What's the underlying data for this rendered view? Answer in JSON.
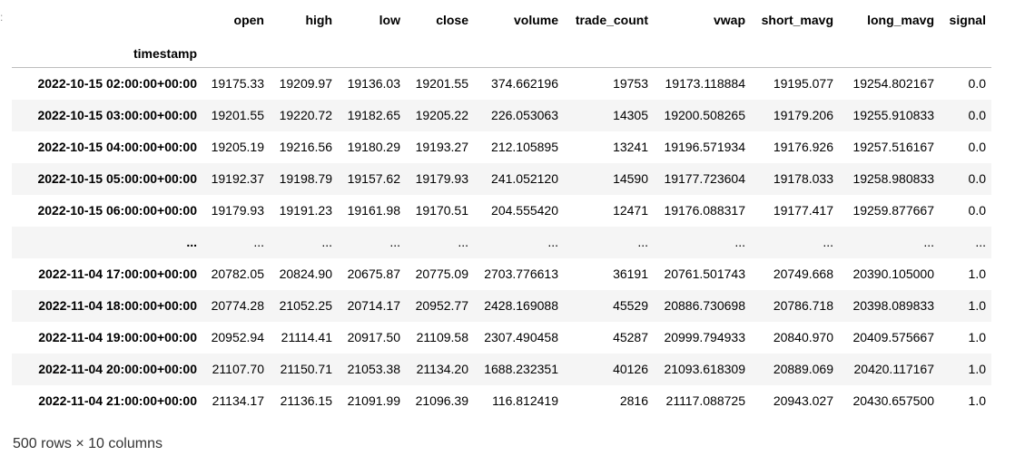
{
  "gutter": {
    "mark": ":"
  },
  "table": {
    "index_name": "timestamp",
    "columns": [
      "open",
      "high",
      "low",
      "close",
      "volume",
      "trade_count",
      "vwap",
      "short_mavg",
      "long_mavg",
      "signal"
    ],
    "rows": [
      {
        "index": "2022-10-15 02:00:00+00:00",
        "cells": [
          "19175.33",
          "19209.97",
          "19136.03",
          "19201.55",
          "374.662196",
          "19753",
          "19173.118884",
          "19195.077",
          "19254.802167",
          "0.0"
        ]
      },
      {
        "index": "2022-10-15 03:00:00+00:00",
        "cells": [
          "19201.55",
          "19220.72",
          "19182.65",
          "19205.22",
          "226.053063",
          "14305",
          "19200.508265",
          "19179.206",
          "19255.910833",
          "0.0"
        ]
      },
      {
        "index": "2022-10-15 04:00:00+00:00",
        "cells": [
          "19205.19",
          "19216.56",
          "19180.29",
          "19193.27",
          "212.105895",
          "13241",
          "19196.571934",
          "19176.926",
          "19257.516167",
          "0.0"
        ]
      },
      {
        "index": "2022-10-15 05:00:00+00:00",
        "cells": [
          "19192.37",
          "19198.79",
          "19157.62",
          "19179.93",
          "241.052120",
          "14590",
          "19177.723604",
          "19178.033",
          "19258.980833",
          "0.0"
        ]
      },
      {
        "index": "2022-10-15 06:00:00+00:00",
        "cells": [
          "19179.93",
          "19191.23",
          "19161.98",
          "19170.51",
          "204.555420",
          "12471",
          "19176.088317",
          "19177.417",
          "19259.877667",
          "0.0"
        ]
      },
      {
        "index": "...",
        "cells": [
          "...",
          "...",
          "...",
          "...",
          "...",
          "...",
          "...",
          "...",
          "...",
          "..."
        ]
      },
      {
        "index": "2022-11-04 17:00:00+00:00",
        "cells": [
          "20782.05",
          "20824.90",
          "20675.87",
          "20775.09",
          "2703.776613",
          "36191",
          "20761.501743",
          "20749.668",
          "20390.105000",
          "1.0"
        ]
      },
      {
        "index": "2022-11-04 18:00:00+00:00",
        "cells": [
          "20774.28",
          "21052.25",
          "20714.17",
          "20952.77",
          "2428.169088",
          "45529",
          "20886.730698",
          "20786.718",
          "20398.089833",
          "1.0"
        ]
      },
      {
        "index": "2022-11-04 19:00:00+00:00",
        "cells": [
          "20952.94",
          "21114.41",
          "20917.50",
          "21109.58",
          "2307.490458",
          "45287",
          "20999.794933",
          "20840.970",
          "20409.575667",
          "1.0"
        ]
      },
      {
        "index": "2022-11-04 20:00:00+00:00",
        "cells": [
          "21107.70",
          "21150.71",
          "21053.38",
          "21134.20",
          "1688.232351",
          "40126",
          "21093.618309",
          "20889.069",
          "20420.117167",
          "1.0"
        ]
      },
      {
        "index": "2022-11-04 21:00:00+00:00",
        "cells": [
          "21134.17",
          "21136.15",
          "21091.99",
          "21096.39",
          "116.812419",
          "2816",
          "21117.088725",
          "20943.027",
          "20430.657500",
          "1.0"
        ]
      }
    ]
  },
  "shape_text": "500 rows × 10 columns"
}
